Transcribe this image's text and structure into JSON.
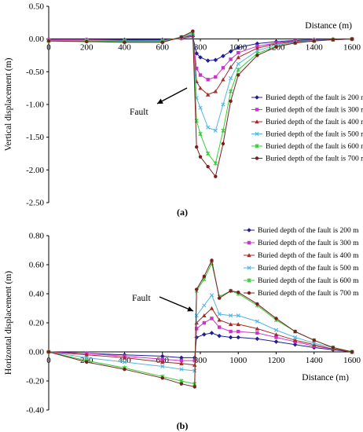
{
  "chart_data": [
    {
      "type": "line",
      "panel_label": "(a)",
      "xlabel": "Distance (m)",
      "ylabel": "Vertical displacement (m)",
      "xlim": [
        0,
        1600
      ],
      "ylim": [
        -2.5,
        0.5
      ],
      "xticks": [
        "0",
        "200",
        "400",
        "600",
        "800",
        "1000",
        "1200",
        "1400",
        "1600"
      ],
      "yticks": [
        "0.50",
        "0.00",
        "-0.50",
        "-1.00",
        "-1.50",
        "-2.00",
        "-2.50"
      ],
      "annotation": "Fault",
      "legend_position": "right",
      "series": [
        {
          "name": "Buried depth of the fault is 200 m",
          "color": "#1f1f8f",
          "marker": "diamond",
          "x": [
            0,
            200,
            400,
            600,
            700,
            760,
            780,
            800,
            840,
            880,
            920,
            960,
            1000,
            1100,
            1200,
            1300,
            1400,
            1500,
            1600
          ],
          "y": [
            -0.01,
            -0.01,
            -0.01,
            -0.01,
            0.01,
            0.04,
            -0.22,
            -0.28,
            -0.33,
            -0.32,
            -0.26,
            -0.19,
            -0.13,
            -0.07,
            -0.04,
            -0.02,
            -0.01,
            -0.005,
            0
          ]
        },
        {
          "name": "Buried depth of the fault is 300 m",
          "color": "#cc33cc",
          "marker": "square",
          "x": [
            0,
            200,
            400,
            600,
            700,
            760,
            780,
            800,
            840,
            880,
            920,
            960,
            1000,
            1100,
            1200,
            1300,
            1400,
            1500,
            1600
          ],
          "y": [
            -0.01,
            -0.01,
            -0.02,
            -0.02,
            0.01,
            0.05,
            -0.45,
            -0.55,
            -0.62,
            -0.58,
            -0.44,
            -0.31,
            -0.21,
            -0.11,
            -0.06,
            -0.03,
            -0.015,
            -0.01,
            0
          ]
        },
        {
          "name": "Buried depth of the fault is 400 m",
          "color": "#a52a2a",
          "marker": "triangle",
          "x": [
            0,
            200,
            400,
            600,
            700,
            760,
            780,
            800,
            840,
            880,
            920,
            960,
            1000,
            1100,
            1200,
            1300,
            1400,
            1500,
            1600
          ],
          "y": [
            -0.02,
            -0.02,
            -0.02,
            -0.03,
            0.02,
            0.06,
            -0.65,
            -0.75,
            -0.85,
            -0.8,
            -0.62,
            -0.43,
            -0.28,
            -0.14,
            -0.07,
            -0.04,
            -0.02,
            -0.01,
            0
          ]
        },
        {
          "name": "Buried depth of the fault is 500 m",
          "color": "#55b5e0",
          "marker": "x",
          "x": [
            0,
            200,
            400,
            600,
            700,
            760,
            780,
            800,
            840,
            880,
            920,
            960,
            1000,
            1100,
            1200,
            1300,
            1400,
            1500,
            1600
          ],
          "y": [
            -0.02,
            -0.02,
            -0.03,
            -0.03,
            0.02,
            0.08,
            -0.9,
            -1.05,
            -1.35,
            -1.4,
            -1.0,
            -0.6,
            -0.38,
            -0.18,
            -0.09,
            -0.05,
            -0.02,
            -0.01,
            0
          ]
        },
        {
          "name": "Buried depth of the fault is 600 m",
          "color": "#33cc33",
          "marker": "star",
          "x": [
            0,
            200,
            400,
            600,
            700,
            760,
            780,
            800,
            840,
            880,
            920,
            960,
            1000,
            1100,
            1200,
            1300,
            1400,
            1500,
            1600
          ],
          "y": [
            -0.03,
            -0.03,
            -0.04,
            -0.04,
            0.03,
            0.1,
            -1.25,
            -1.45,
            -1.75,
            -1.9,
            -1.4,
            -0.8,
            -0.47,
            -0.22,
            -0.11,
            -0.06,
            -0.03,
            -0.01,
            0
          ]
        },
        {
          "name": "Buried depth of the fault is 700 m",
          "color": "#7a1f1f",
          "marker": "circle",
          "x": [
            0,
            200,
            400,
            600,
            700,
            760,
            780,
            800,
            840,
            880,
            920,
            960,
            1000,
            1100,
            1200,
            1300,
            1400,
            1500,
            1600
          ],
          "y": [
            -0.03,
            -0.04,
            -0.05,
            -0.05,
            0.03,
            0.12,
            -1.65,
            -1.8,
            -1.95,
            -2.1,
            -1.6,
            -0.95,
            -0.55,
            -0.25,
            -0.12,
            -0.06,
            -0.03,
            -0.01,
            0
          ]
        }
      ]
    },
    {
      "type": "line",
      "panel_label": "(b)",
      "xlabel": "Distance (m)",
      "ylabel": "Horizontal displacement (m)",
      "xlim": [
        0,
        1600
      ],
      "ylim": [
        -0.4,
        0.8
      ],
      "xticks": [
        "0",
        "200",
        "400",
        "600",
        "800",
        "1000",
        "1200",
        "1400",
        "1600"
      ],
      "yticks": [
        "0.80",
        "0.60",
        "0.40",
        "0.20",
        "0.00",
        "-0.20",
        "-0.40"
      ],
      "annotation": "Fault",
      "legend_position": "top-right",
      "series": [
        {
          "name": "Buried depth of the fault is 200 m",
          "color": "#1f1f8f",
          "marker": "diamond",
          "x": [
            0,
            200,
            400,
            600,
            700,
            770,
            780,
            820,
            860,
            900,
            960,
            1000,
            1100,
            1200,
            1300,
            1400,
            1500,
            1600
          ],
          "y": [
            0,
            -0.01,
            -0.02,
            -0.03,
            -0.04,
            -0.04,
            0.1,
            0.12,
            0.13,
            0.11,
            0.1,
            0.1,
            0.09,
            0.07,
            0.05,
            0.03,
            0.015,
            0
          ]
        },
        {
          "name": "Buried depth of the fault is 300 m",
          "color": "#cc33cc",
          "marker": "square",
          "x": [
            0,
            200,
            400,
            600,
            700,
            770,
            780,
            820,
            860,
            900,
            960,
            1000,
            1100,
            1200,
            1300,
            1400,
            1500,
            1600
          ],
          "y": [
            0,
            -0.01,
            -0.03,
            -0.05,
            -0.06,
            -0.06,
            0.16,
            0.2,
            0.23,
            0.17,
            0.14,
            0.14,
            0.13,
            0.1,
            0.07,
            0.04,
            0.02,
            0
          ]
        },
        {
          "name": "Buried depth of the fault is 400 m",
          "color": "#a52a2a",
          "marker": "triangle",
          "x": [
            0,
            200,
            400,
            600,
            700,
            770,
            780,
            820,
            860,
            900,
            960,
            1000,
            1100,
            1200,
            1300,
            1400,
            1500,
            1600
          ],
          "y": [
            0,
            -0.02,
            -0.04,
            -0.07,
            -0.08,
            -0.09,
            0.2,
            0.25,
            0.3,
            0.22,
            0.19,
            0.19,
            0.16,
            0.12,
            0.08,
            0.05,
            0.02,
            0
          ]
        },
        {
          "name": "Buried depth of the fault is 500 m",
          "color": "#55b5e0",
          "marker": "x",
          "x": [
            0,
            200,
            400,
            600,
            700,
            770,
            780,
            820,
            860,
            900,
            960,
            1000,
            1100,
            1200,
            1300,
            1400,
            1500,
            1600
          ],
          "y": [
            0,
            -0.04,
            -0.07,
            -0.1,
            -0.12,
            -0.13,
            0.25,
            0.32,
            0.39,
            0.26,
            0.25,
            0.25,
            0.21,
            0.15,
            0.1,
            0.06,
            0.03,
            0
          ]
        },
        {
          "name": "Buried depth of the fault is 600 m",
          "color": "#33cc33",
          "marker": "star",
          "x": [
            0,
            200,
            400,
            600,
            700,
            770,
            780,
            820,
            860,
            900,
            960,
            1000,
            1100,
            1200,
            1300,
            1400,
            1500,
            1600
          ],
          "y": [
            0,
            -0.06,
            -0.11,
            -0.17,
            -0.2,
            -0.22,
            0.42,
            0.5,
            0.61,
            0.38,
            0.42,
            0.4,
            0.32,
            0.22,
            0.14,
            0.08,
            0.03,
            0
          ]
        },
        {
          "name": "Buried depth of the fault is 700 m",
          "color": "#7a1f1f",
          "marker": "circle",
          "x": [
            0,
            200,
            400,
            600,
            700,
            770,
            780,
            820,
            860,
            900,
            960,
            1000,
            1100,
            1200,
            1300,
            1400,
            1500,
            1600
          ],
          "y": [
            0,
            -0.07,
            -0.12,
            -0.18,
            -0.22,
            -0.24,
            0.43,
            0.52,
            0.63,
            0.37,
            0.42,
            0.41,
            0.33,
            0.23,
            0.14,
            0.08,
            0.03,
            0
          ]
        }
      ]
    }
  ]
}
